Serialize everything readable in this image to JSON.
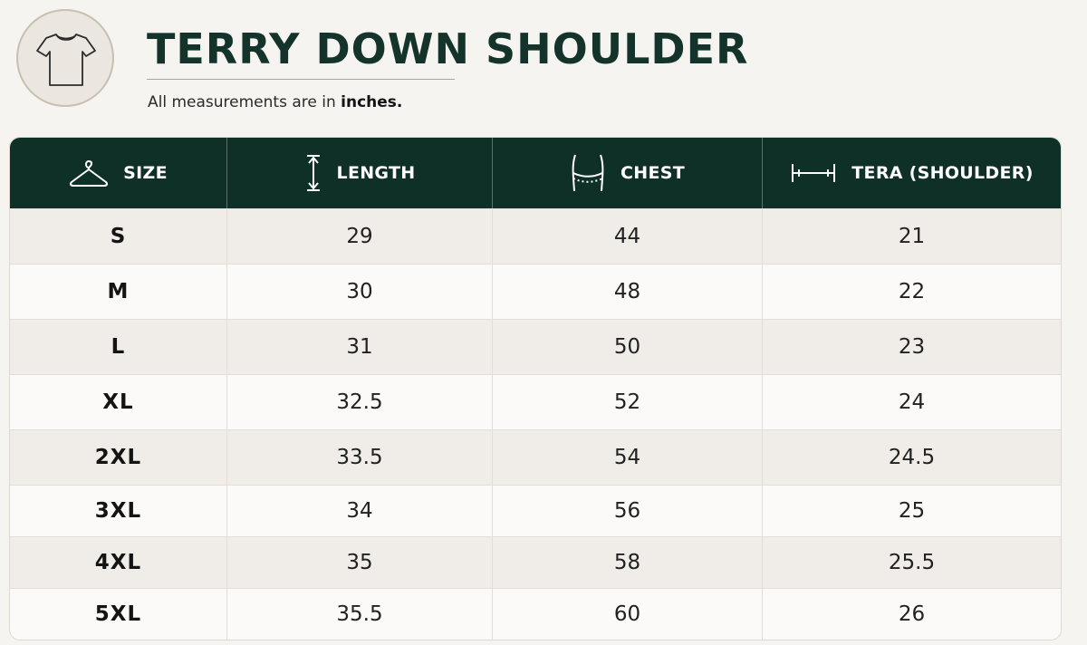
{
  "header": {
    "title": "TERRY DOWN SHOULDER",
    "subtitle_prefix": "All measurements are in ",
    "subtitle_unit": "inches."
  },
  "icons": {
    "logo": "tshirt-icon",
    "size": "hanger-icon",
    "length": "vertical-measure-icon",
    "chest": "chest-measure-icon",
    "shoulder": "horizontal-measure-icon"
  },
  "colors": {
    "header_bg": "#0f3027",
    "title": "#14342b",
    "background": "#f6f4f0"
  },
  "table": {
    "columns": [
      "SIZE",
      "LENGTH",
      "CHEST",
      "TERA (SHOULDER)"
    ],
    "rows": [
      {
        "size": "S",
        "length": "29",
        "chest": "44",
        "shoulder": "21"
      },
      {
        "size": "M",
        "length": "30",
        "chest": "48",
        "shoulder": "22"
      },
      {
        "size": "L",
        "length": "31",
        "chest": "50",
        "shoulder": "23"
      },
      {
        "size": "XL",
        "length": "32.5",
        "chest": "52",
        "shoulder": "24"
      },
      {
        "size": "2XL",
        "length": "33.5",
        "chest": "54",
        "shoulder": "24.5"
      },
      {
        "size": "3XL",
        "length": "34",
        "chest": "56",
        "shoulder": "25"
      },
      {
        "size": "4XL",
        "length": "35",
        "chest": "58",
        "shoulder": "25.5"
      },
      {
        "size": "5XL",
        "length": "35.5",
        "chest": "60",
        "shoulder": "26"
      }
    ]
  }
}
